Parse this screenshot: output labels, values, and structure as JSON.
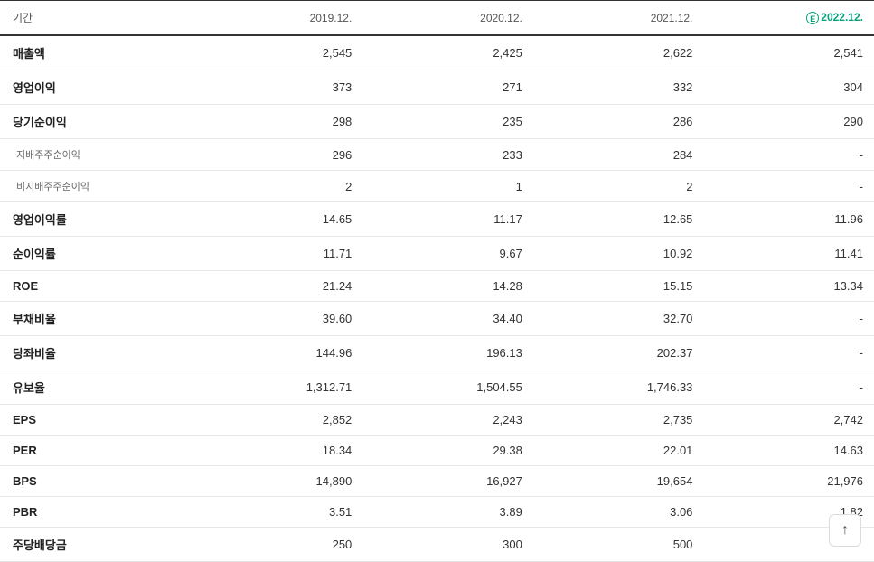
{
  "header": {
    "period_label": "기간",
    "columns": [
      "2019.12.",
      "2020.12.",
      "2021.12.",
      "2022.12."
    ],
    "estimate_badge": "E",
    "estimate_col_index": 3
  },
  "rows": [
    {
      "label": "매출액",
      "sub": false,
      "values": [
        "2,545",
        "2,425",
        "2,622",
        "2,541"
      ]
    },
    {
      "label": "영업이익",
      "sub": false,
      "values": [
        "373",
        "271",
        "332",
        "304"
      ]
    },
    {
      "label": "당기순이익",
      "sub": false,
      "values": [
        "298",
        "235",
        "286",
        "290"
      ]
    },
    {
      "label": "지배주주순이익",
      "sub": true,
      "values": [
        "296",
        "233",
        "284",
        "-"
      ]
    },
    {
      "label": "비지배주주순이익",
      "sub": true,
      "values": [
        "2",
        "1",
        "2",
        "-"
      ]
    },
    {
      "label": "영업이익률",
      "sub": false,
      "values": [
        "14.65",
        "11.17",
        "12.65",
        "11.96"
      ]
    },
    {
      "label": "순이익률",
      "sub": false,
      "values": [
        "11.71",
        "9.67",
        "10.92",
        "11.41"
      ]
    },
    {
      "label": "ROE",
      "sub": false,
      "values": [
        "21.24",
        "14.28",
        "15.15",
        "13.34"
      ]
    },
    {
      "label": "부채비율",
      "sub": false,
      "values": [
        "39.60",
        "34.40",
        "32.70",
        "-"
      ]
    },
    {
      "label": "당좌비율",
      "sub": false,
      "values": [
        "144.96",
        "196.13",
        "202.37",
        "-"
      ]
    },
    {
      "label": "유보율",
      "sub": false,
      "values": [
        "1,312.71",
        "1,504.55",
        "1,746.33",
        "-"
      ]
    },
    {
      "label": "EPS",
      "sub": false,
      "values": [
        "2,852",
        "2,243",
        "2,735",
        "2,742"
      ]
    },
    {
      "label": "PER",
      "sub": false,
      "values": [
        "18.34",
        "29.38",
        "22.01",
        "14.63"
      ]
    },
    {
      "label": "BPS",
      "sub": false,
      "values": [
        "14,890",
        "16,927",
        "19,654",
        "21,976"
      ]
    },
    {
      "label": "PBR",
      "sub": false,
      "values": [
        "3.51",
        "3.89",
        "3.06",
        "1.82"
      ]
    },
    {
      "label": "주당배당금",
      "sub": false,
      "values": [
        "250",
        "300",
        "500",
        ""
      ]
    }
  ],
  "styling": {
    "background_color": "#ffffff",
    "text_color": "#333333",
    "border_color_header": "#333333",
    "border_color_row": "#e6e6e6",
    "estimate_color": "#06a27b",
    "sub_label_color": "#666666",
    "font_size_body": 13,
    "font_size_header": 12,
    "font_size_sub": 11,
    "col_widths_pct": [
      22,
      19.5,
      19.5,
      19.5,
      19.5
    ]
  },
  "scroll_top": {
    "glyph": "↑"
  }
}
